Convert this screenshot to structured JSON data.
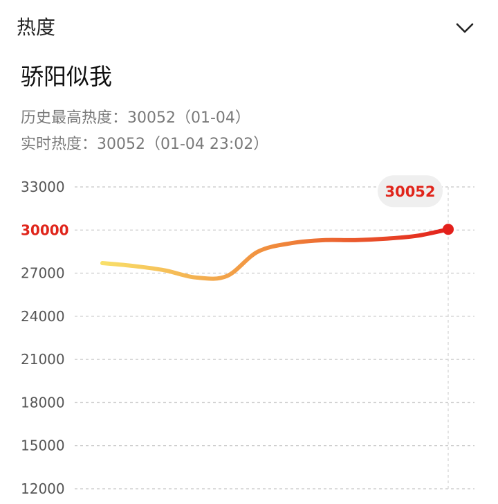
{
  "header": {
    "title": "热度",
    "toggle_icon": "chevron-down-icon"
  },
  "topic": {
    "title": "骄阳似我"
  },
  "stats": {
    "peak_line": "历史最高热度：30052（01-04）",
    "realtime_line": "实时热度：30052（01-04 23:02）"
  },
  "chart_data": {
    "type": "line",
    "title": "",
    "xlabel": "",
    "ylabel": "",
    "y_ticks": [
      "33000",
      "30000",
      "27000",
      "24000",
      "21000",
      "18000",
      "15000",
      "12000"
    ],
    "highlight_tick": "30000",
    "ylim": [
      12000,
      33000
    ],
    "grid": true,
    "x": [
      0,
      0.09,
      0.18,
      0.27,
      0.36,
      0.45,
      0.55,
      0.64,
      0.73,
      0.82,
      0.91,
      1.0
    ],
    "values": [
      27700,
      27500,
      27200,
      26700,
      26800,
      28500,
      29100,
      29300,
      29300,
      29400,
      29600,
      30052
    ],
    "last_point_label": "30052",
    "colors": {
      "start": "#f9e06a",
      "mid": "#f08a3c",
      "end": "#e3201b",
      "highlight": "#e0251b",
      "grid": "#cfcfcf",
      "badge_bg": "#efefef"
    }
  }
}
